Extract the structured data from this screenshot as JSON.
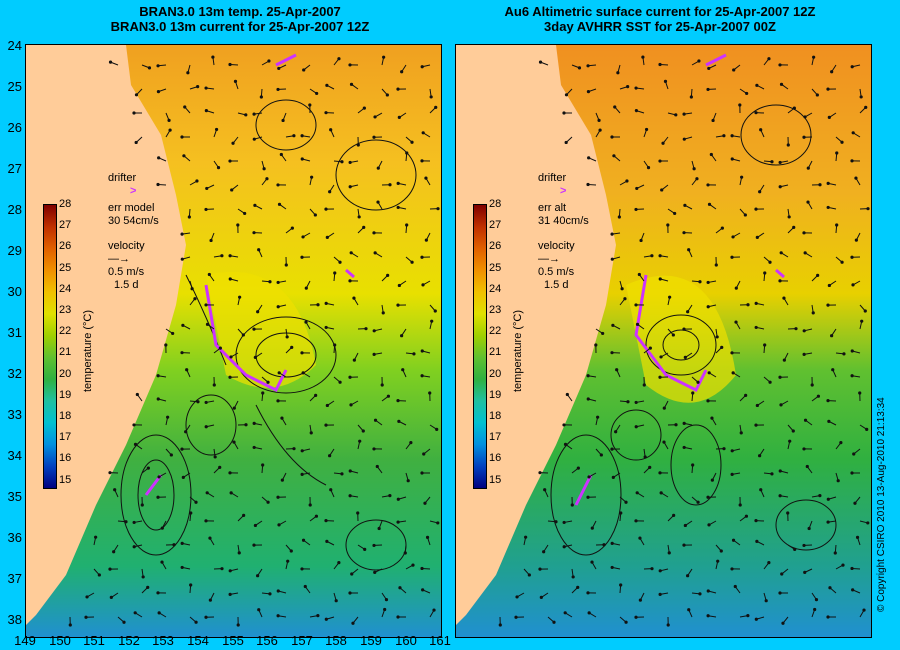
{
  "left_title": {
    "line1": "BRAN3.0 13m temp. 25-Apr-2007",
    "line2": "BRAN3.0 13m current for 25-Apr-2007 12Z"
  },
  "right_title": {
    "line1": "Au6 Altimetric surface current for 25-Apr-2007 12Z",
    "line2": "3day AVHRR SST for 25-Apr-2007 00Z"
  },
  "latitude_labels": [
    "24",
    "25",
    "26",
    "27",
    "28",
    "29",
    "30",
    "31",
    "32",
    "33",
    "34",
    "35",
    "36",
    "37",
    "38"
  ],
  "longitude_labels": [
    "149",
    "150",
    "151",
    "152",
    "153",
    "154",
    "155",
    "156",
    "157",
    "158",
    "159",
    "160",
    "161"
  ],
  "left_legend": {
    "drifter_label": "drifter",
    "err_label": "err model",
    "err_value": "30 54cm/s",
    "velocity_label": "velocity",
    "speed": "0.5 m/s",
    "duration": "1.5 d"
  },
  "right_legend": {
    "drifter_label": "drifter",
    "err_label": "err alt",
    "err_value": "31 40cm/s",
    "velocity_label": "velocity",
    "speed": "0.5 m/s",
    "duration": "1.5 d"
  },
  "colorbar": {
    "title": "temperature (°C)",
    "ticks": [
      "28",
      "27",
      "26",
      "25",
      "24",
      "23",
      "22",
      "21",
      "20",
      "19",
      "18",
      "17",
      "16",
      "15"
    ],
    "colors": [
      "#000080",
      "#0040c0",
      "#0090e0",
      "#00c0d0",
      "#20c0a0",
      "#30b040",
      "#60c030",
      "#a0d000",
      "#e0e000",
      "#f0c000",
      "#f09000",
      "#e06000",
      "#c03000",
      "#800000"
    ]
  },
  "copyright": "© Copyright CSIRO 2010   13-Aug-2010 21:13:34",
  "colors": {
    "background": "#00ccff",
    "land": "#ffcc99",
    "drifter": "#cc33ff",
    "contour": "#66ffcc"
  }
}
